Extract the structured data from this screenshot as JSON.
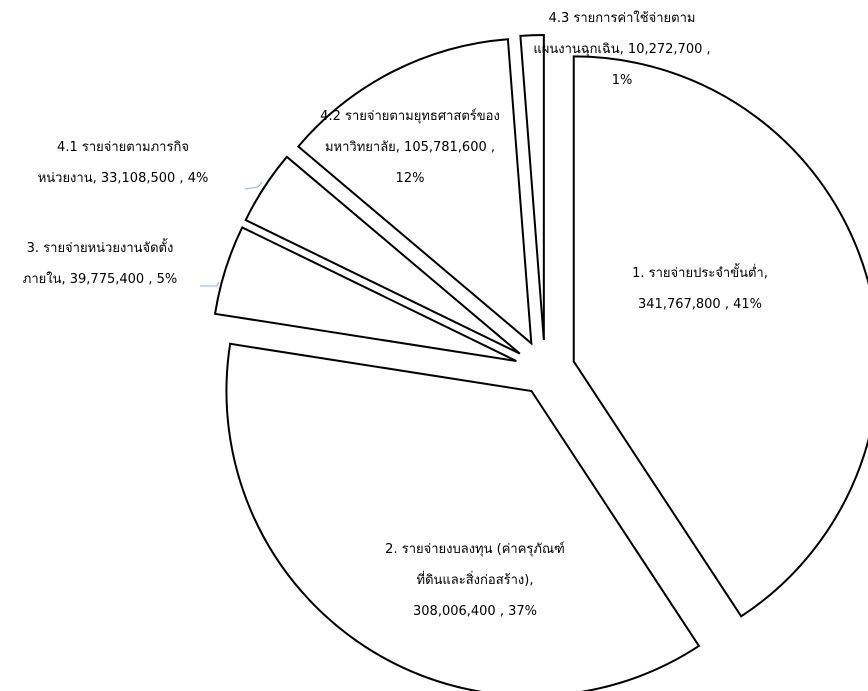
{
  "chart_data": {
    "type": "pie",
    "exploded": true,
    "slices": [
      {
        "label_lines": [
          "1. รายจ่ายประจำขั้นต่ำ,",
          "341,767,800 , 41%"
        ],
        "value": 341767800,
        "percent": 41
      },
      {
        "label_lines": [
          "2. รายจ่ายงบลงทุน (ค่าครุภัณฑ์",
          "ที่ดินและสิ่งก่อสร้าง),",
          "308,006,400 , 37%"
        ],
        "value": 308006400,
        "percent": 37
      },
      {
        "label_lines": [
          "3. รายจ่ายหน่วยงานจัดตั้ง",
          "ภายใน, 39,775,400 , 5%"
        ],
        "value": 39775400,
        "percent": 5
      },
      {
        "label_lines": [
          "4.1 รายจ่ายตามภารกิจ",
          "หน่วยงาน, 33,108,500 , 4%"
        ],
        "value": 33108500,
        "percent": 4
      },
      {
        "label_lines": [
          "4.2 รายจ่ายตามยุทธศาสตร์ของ",
          "มหาวิทยาลัย, 105,781,600 ,",
          "12%"
        ],
        "value": 105781600,
        "percent": 12
      },
      {
        "label_lines": [
          "4.3 รายการค่าใช้จ่ายตาม",
          "แผนงานฉุกเฉิน, 10,272,700 ,",
          "1%"
        ],
        "value": 10272700,
        "percent": 1
      }
    ],
    "colors": {
      "fill": "#ffffff",
      "stroke": "#000000",
      "leader": "#8fb3d9"
    }
  }
}
